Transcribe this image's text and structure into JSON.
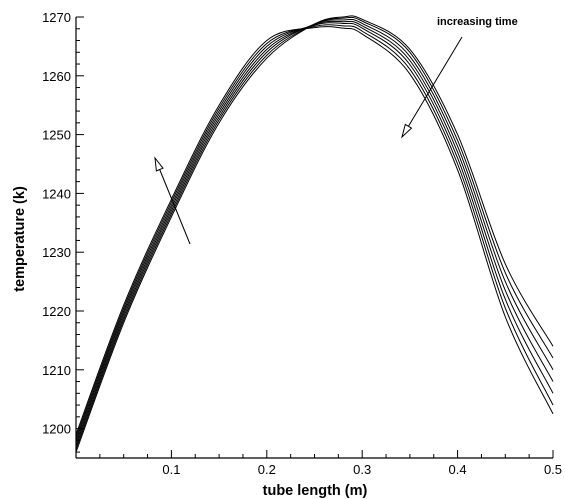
{
  "chart_data": {
    "type": "line",
    "title": "",
    "xlabel": "tube length (m)",
    "ylabel": "temperature (k)",
    "xlim": [
      0,
      0.5
    ],
    "ylim": [
      1195,
      1270
    ],
    "xticks": [
      0.1,
      0.2,
      0.3,
      0.4,
      0.5
    ],
    "xtick_labels": [
      "0.1",
      "0.2",
      "0.3",
      "0.4",
      "0.5"
    ],
    "yticks": [
      1200,
      1210,
      1220,
      1230,
      1240,
      1250,
      1260,
      1270
    ],
    "ytick_labels": [
      "1200",
      "1210",
      "1220",
      "1230",
      "1240",
      "1250",
      "1260",
      "1270"
    ],
    "grid": false,
    "line_color": "#000000",
    "annotation": "increasing time",
    "series": [
      {
        "x": [
          0,
          0.05,
          0.1,
          0.15,
          0.2,
          0.25,
          0.28,
          0.3,
          0.35,
          0.4,
          0.45,
          0.5
        ],
        "values": [
          1196,
          1218,
          1236,
          1252,
          1263,
          1268.8,
          1270,
          1269.6,
          1264.5,
          1250,
          1228,
          1214
        ]
      },
      {
        "x": [
          0,
          0.05,
          0.1,
          0.15,
          0.2,
          0.25,
          0.28,
          0.3,
          0.35,
          0.4,
          0.45,
          0.5
        ],
        "values": [
          1196.5,
          1218.5,
          1236.5,
          1252.5,
          1263.5,
          1268.8,
          1269.8,
          1269.3,
          1264,
          1249,
          1226.5,
          1212
        ]
      },
      {
        "x": [
          0,
          0.05,
          0.1,
          0.15,
          0.2,
          0.25,
          0.28,
          0.3,
          0.35,
          0.4,
          0.45,
          0.5
        ],
        "values": [
          1197,
          1219,
          1237,
          1253,
          1264,
          1268.8,
          1269.5,
          1268.9,
          1263.3,
          1248,
          1225,
          1210
        ]
      },
      {
        "x": [
          0,
          0.05,
          0.1,
          0.15,
          0.2,
          0.25,
          0.28,
          0.3,
          0.35,
          0.4,
          0.45,
          0.5
        ],
        "values": [
          1197.5,
          1219.5,
          1237.5,
          1253.5,
          1264.5,
          1268.7,
          1269.2,
          1268.5,
          1262.6,
          1247,
          1223.5,
          1208
        ]
      },
      {
        "x": [
          0,
          0.05,
          0.1,
          0.15,
          0.2,
          0.25,
          0.28,
          0.3,
          0.35,
          0.4,
          0.45,
          0.5
        ],
        "values": [
          1198,
          1220,
          1238,
          1254,
          1265,
          1268.6,
          1268.9,
          1268.1,
          1261.9,
          1246,
          1222,
          1206
        ]
      },
      {
        "x": [
          0,
          0.05,
          0.1,
          0.15,
          0.2,
          0.25,
          0.28,
          0.3,
          0.35,
          0.4,
          0.45,
          0.5
        ],
        "values": [
          1198.5,
          1220.5,
          1238.5,
          1254.5,
          1265.5,
          1268.4,
          1268.5,
          1267.6,
          1261.1,
          1245,
          1220.5,
          1204
        ]
      },
      {
        "x": [
          0,
          0.05,
          0.1,
          0.15,
          0.2,
          0.25,
          0.28,
          0.3,
          0.35,
          0.4,
          0.45,
          0.5
        ],
        "values": [
          1199,
          1221,
          1239,
          1255,
          1266,
          1268.2,
          1268.1,
          1267.1,
          1260.3,
          1244,
          1219,
          1202.5
        ]
      }
    ]
  }
}
